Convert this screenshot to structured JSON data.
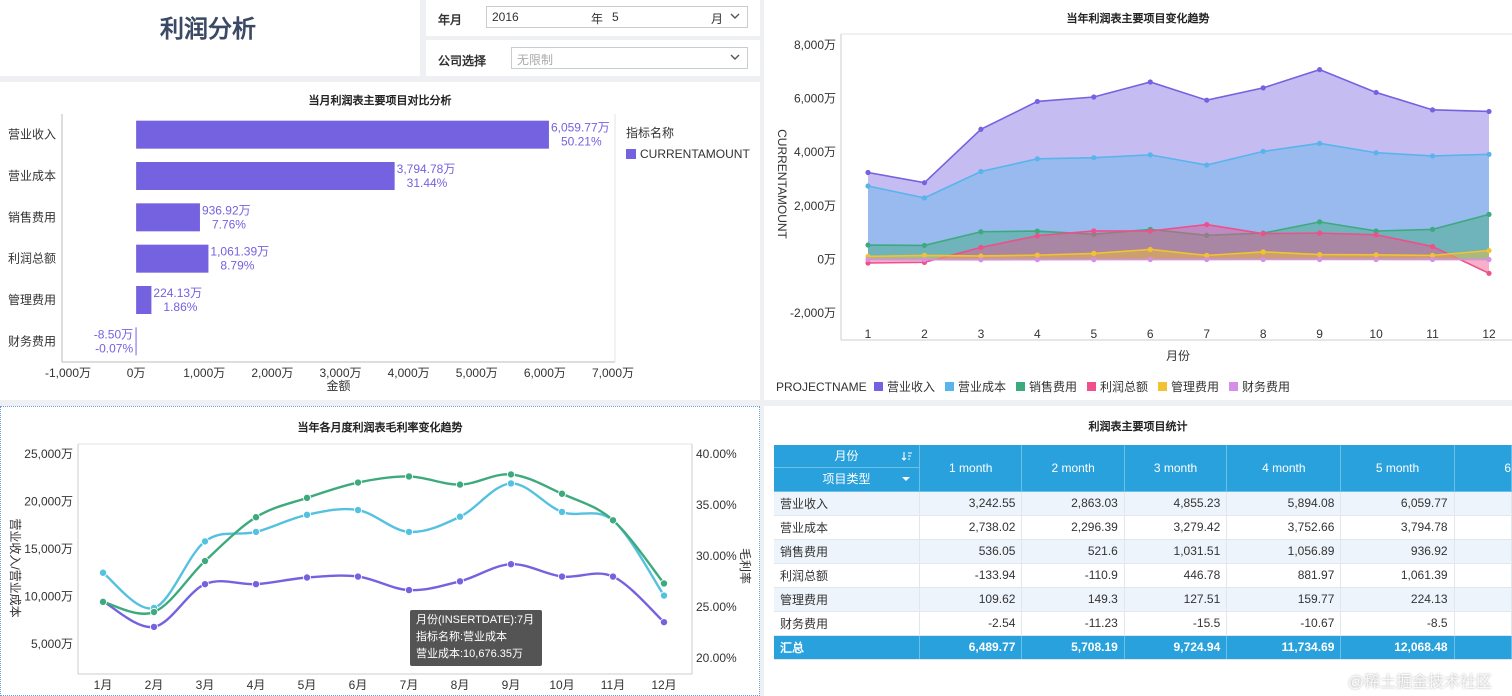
{
  "header": {
    "title": "利润分析",
    "year_label": "年月",
    "year_value": "2016",
    "year_unit": "年",
    "month_value": "5",
    "month_unit": "月",
    "company_label": "公司选择",
    "company_placeholder": "无限制"
  },
  "colors": {
    "purple": "#7462e0",
    "blue": "#5ab4ec",
    "green": "#3daa7d",
    "pink": "#ef4f8a",
    "yellow": "#f1c232",
    "violet": "#d58fe6",
    "teal": "#55c1e0",
    "tableHeader": "#29a1dc"
  },
  "bar_chart": {
    "title": "当月利润表主要项目对比分析",
    "legend_title": "指标名称",
    "legend_item": "CURRENTAMOUNT",
    "xlabel": "金额",
    "xticks": [
      "-1,000万",
      "0万",
      "1,000万",
      "2,000万",
      "3,000万",
      "4,000万",
      "5,000万",
      "6,000万",
      "7,000万"
    ],
    "chart_data": {
      "type": "bar",
      "orientation": "horizontal",
      "categories": [
        "营业收入",
        "营业成本",
        "销售费用",
        "利润总额",
        "管理费用",
        "财务费用"
      ],
      "values": [
        6059.77,
        3794.78,
        936.92,
        1061.39,
        224.13,
        -8.5
      ],
      "value_labels": [
        "6,059.77万",
        "3,794.78万",
        "936.92万",
        "1,061.39万",
        "224.13万",
        "-8.50万"
      ],
      "percent_labels": [
        "50.21%",
        "31.44%",
        "7.76%",
        "8.79%",
        "1.86%",
        "-0.07%"
      ],
      "xlim": [
        -1000,
        7000
      ]
    }
  },
  "area_chart": {
    "title": "当年利润表主要项目变化趋势",
    "ylabel": "CURRENTAMOUNT",
    "xlabel": "月份",
    "legend_title": "PROJECTNAME",
    "yticks": [
      "8,000万",
      "6,000万",
      "4,000万",
      "2,000万",
      "0万",
      "-2,000万"
    ],
    "chart_data": {
      "type": "area",
      "x": [
        "1",
        "2",
        "3",
        "4",
        "5",
        "6",
        "7",
        "8",
        "9",
        "10",
        "11",
        "12"
      ],
      "ylim": [
        -2000,
        8000
      ],
      "series": [
        {
          "name": "营业收入",
          "values": [
            3242.55,
            2863.03,
            4855.23,
            5894.08,
            6059.77,
            6620,
            5940,
            6400,
            7080,
            6230,
            5580,
            5520
          ]
        },
        {
          "name": "营业成本",
          "values": [
            2738.02,
            2296.39,
            3279.42,
            3752.66,
            3794.78,
            3900,
            3520,
            4030,
            4330,
            3980,
            3860,
            3920
          ]
        },
        {
          "name": "销售费用",
          "values": [
            536.05,
            521.6,
            1031.51,
            1056.89,
            936.92,
            1120,
            900,
            980,
            1400,
            1060,
            1120,
            1680
          ]
        },
        {
          "name": "利润总额",
          "values": [
            -133.94,
            -110.9,
            446.78,
            881.97,
            1061.39,
            1060,
            1300,
            960,
            980,
            920,
            480,
            -520
          ]
        },
        {
          "name": "管理费用",
          "values": [
            109.62,
            149.3,
            127.51,
            159.77,
            224.13,
            370,
            150,
            280,
            180,
            170,
            150,
            330
          ]
        },
        {
          "name": "财务费用",
          "values": [
            -2.54,
            -11.23,
            -15.5,
            -10.67,
            -8.5,
            -5,
            -6,
            -4,
            -3,
            -4,
            -5,
            -6
          ]
        }
      ]
    }
  },
  "line_chart": {
    "title": "当年各月度利润表毛利率变化趋势",
    "ylabel_left": "营业收入/营业成本",
    "ylabel_right": "毛利率",
    "yticks_left": [
      "25,000万",
      "20,000万",
      "15,000万",
      "10,000万",
      "5,000万"
    ],
    "yticks_right": [
      "40.00%",
      "35.00%",
      "30.00%",
      "25.00%",
      "20.00%"
    ],
    "chart_data": {
      "type": "line",
      "x": [
        "1月",
        "2月",
        "3月",
        "4月",
        "5月",
        "6月",
        "7月",
        "8月",
        "9月",
        "10月",
        "11月",
        "12月"
      ],
      "ylim_left": [
        3000,
        25000
      ],
      "ylim_right": [
        19.5,
        40
      ],
      "series": [
        {
          "name": "营业收入",
          "axis": "left",
          "values": [
            12500,
            8800,
            15800,
            16800,
            18600,
            19100,
            16800,
            18400,
            21900,
            18900,
            18000,
            10100
          ]
        },
        {
          "name": "营业成本",
          "axis": "left",
          "values": [
            9500,
            6800,
            11300,
            11300,
            12000,
            12100,
            10676.35,
            11600,
            13400,
            12100,
            12100,
            7300
          ]
        },
        {
          "name": "毛利率",
          "axis": "right",
          "values": [
            25.5,
            24.5,
            29.5,
            33.8,
            35.7,
            37.2,
            37.8,
            37.0,
            38.0,
            36.1,
            33.5,
            27.3
          ]
        }
      ]
    },
    "tooltip": {
      "line1": "月份(INSERTDATE):7月",
      "line2": "指标名称:营业成本",
      "line3": "营业成本:10,676.35万"
    }
  },
  "table": {
    "title": "利润表主要项目统计",
    "corner_top": "月份",
    "corner_bottom": "项目类型",
    "columns": [
      "1 month",
      "2 month",
      "3 month",
      "4 month",
      "5 month",
      "6"
    ],
    "rows": [
      {
        "label": "营业收入",
        "cells": [
          "3,242.55",
          "2,863.03",
          "4,855.23",
          "5,894.08",
          "6,059.77",
          ""
        ]
      },
      {
        "label": "营业成本",
        "cells": [
          "2,738.02",
          "2,296.39",
          "3,279.42",
          "3,752.66",
          "3,794.78",
          ""
        ]
      },
      {
        "label": "销售费用",
        "cells": [
          "536.05",
          "521.6",
          "1,031.51",
          "1,056.89",
          "936.92",
          ""
        ]
      },
      {
        "label": "利润总额",
        "cells": [
          "-133.94",
          "-110.9",
          "446.78",
          "881.97",
          "1,061.39",
          ""
        ]
      },
      {
        "label": "管理费用",
        "cells": [
          "109.62",
          "149.3",
          "127.51",
          "159.77",
          "224.13",
          ""
        ]
      },
      {
        "label": "财务费用",
        "cells": [
          "-2.54",
          "-11.23",
          "-15.5",
          "-10.67",
          "-8.5",
          ""
        ]
      }
    ],
    "total": {
      "label": "汇总",
      "cells": [
        "6,489.77",
        "5,708.19",
        "9,724.94",
        "11,734.69",
        "12,068.48",
        ""
      ]
    }
  },
  "watermark": "@稀土掘金技术社区"
}
